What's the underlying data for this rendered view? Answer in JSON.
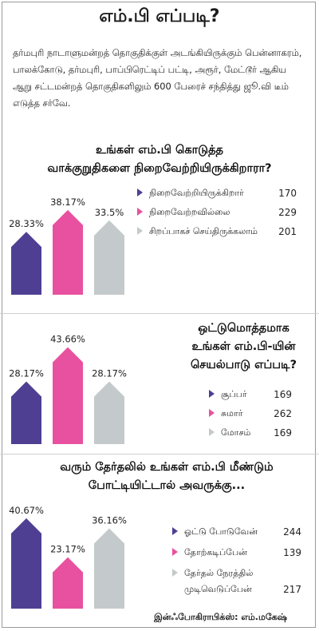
{
  "title": "எம்.பி எப்படி?",
  "intro": "தர்மபுரி நாடாளுமன்றத் தொகுதிக்குள் அடங்கியிருக்கும் பென்னாகரம், பாலக்கோடு, தர்மபுரி, பாப்பிரெட்டிப் பட்டி, அரூர், மேட்டூர் ஆகிய ஆறு சட்டமன்றத் தொகுதிகளிலும் 600 பேரைச் சந்தித்து ஜூ.வி டீம் எடுத்த சர்வே.",
  "colors": {
    "purple": "#4f3f93",
    "pink": "#e8519f",
    "gray": "#c4cacb"
  },
  "chart_data": [
    {
      "type": "bar",
      "title_lines": [
        "உங்கள் எம்.பி கொடுத்த",
        "வாக்குறுதிகளை நிறைவேற்றியிருக்கிறாரா?"
      ],
      "categories": [
        "நிறைவேற்றியிருக்கிறார்",
        "நிறைவேற்றவில்லை",
        "சிறப்பாகச் செய்திருக்கலாம்"
      ],
      "counts": [
        170,
        229,
        201
      ],
      "values": [
        28.33,
        38.17,
        33.5
      ],
      "value_labels": [
        "28.33%",
        "38.17%",
        "33.5%"
      ],
      "colors": [
        "#4f3f93",
        "#e8519f",
        "#c4cacb"
      ],
      "ylim": [
        0,
        45
      ]
    },
    {
      "type": "bar",
      "title_lines": [
        "ஒட்டுமொத்தமாக",
        "உங்கள் எம்.பி-யின்",
        "செயல்பாடு எப்படி?"
      ],
      "categories": [
        "சூப்பர்",
        "சுமார்",
        "மோசம்"
      ],
      "counts": [
        169,
        262,
        169
      ],
      "values": [
        28.17,
        43.66,
        28.17
      ],
      "value_labels": [
        "28.17%",
        "43.66%",
        "28.17%"
      ],
      "colors": [
        "#4f3f93",
        "#e8519f",
        "#c4cacb"
      ],
      "ylim": [
        0,
        45
      ]
    },
    {
      "type": "bar",
      "title_lines": [
        "வரும் தேர்தலில் உங்கள் எம்.பி மீண்டும்",
        "போட்டியிட்டால் அவருக்கு..."
      ],
      "categories": [
        "ஓட்டு போடுவேன்",
        "தோற்கடிப்பேன்",
        "தேர்தல் நேரத்தில் முடிவெடுப்பேன்"
      ],
      "category_lines": [
        [
          "ஓட்டு போடுவேன்"
        ],
        [
          "தோற்கடிப்பேன்"
        ],
        [
          "தேர்தல் நேரத்தில்",
          "முடிவெடுப்பேன்"
        ]
      ],
      "counts": [
        244,
        139,
        217
      ],
      "values": [
        40.67,
        23.17,
        36.16
      ],
      "value_labels": [
        "40.67%",
        "23.17%",
        "36.16%"
      ],
      "colors": [
        "#4f3f93",
        "#e8519f",
        "#c4cacb"
      ],
      "ylim": [
        0,
        45
      ]
    }
  ],
  "credit": "இன்ஃபோகிராபிக்ஸ்: எம்.மகேஷ்"
}
